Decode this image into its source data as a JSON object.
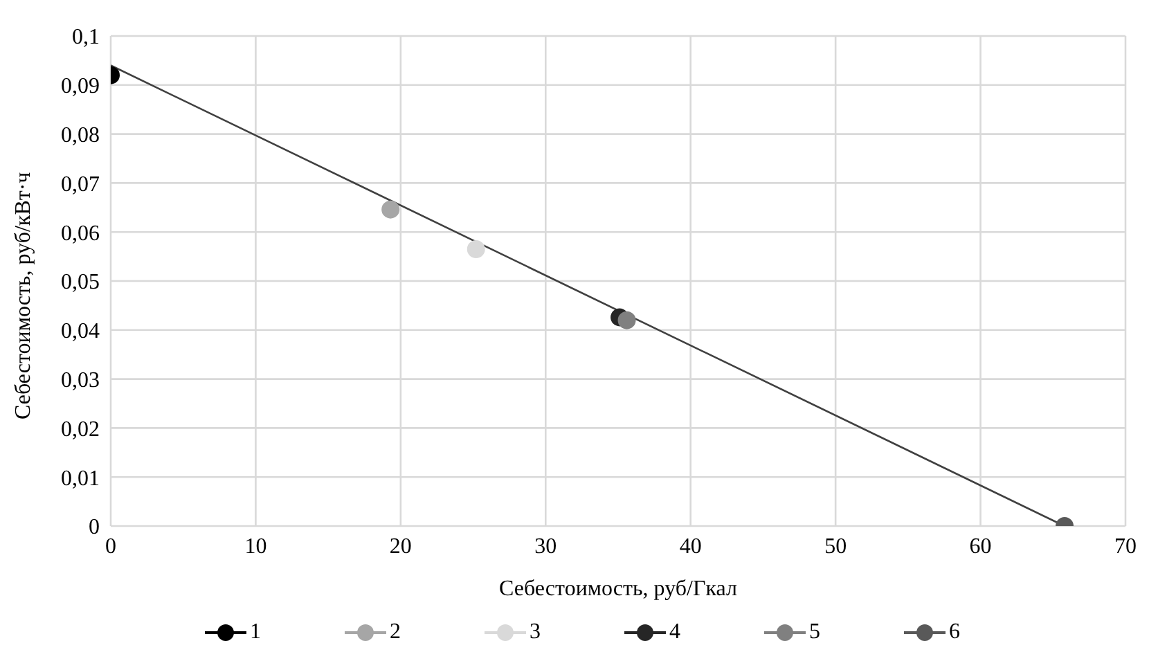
{
  "chart_data": {
    "type": "line",
    "xlabel": "Себестоимость, руб/Гкал",
    "ylabel": "Себестоимость, руб/кВт·ч",
    "xlim": [
      0,
      70
    ],
    "xticks": [
      0,
      10,
      20,
      30,
      40,
      50,
      60,
      70
    ],
    "ylim": [
      0,
      0.1
    ],
    "yticks": [
      {
        "value": 0,
        "label": "0"
      },
      {
        "value": 0.01,
        "label": "0,01"
      },
      {
        "value": 0.02,
        "label": "0,02"
      },
      {
        "value": 0.03,
        "label": "0,03"
      },
      {
        "value": 0.04,
        "label": "0,04"
      },
      {
        "value": 0.05,
        "label": "0,05"
      },
      {
        "value": 0.06,
        "label": "0,06"
      },
      {
        "value": 0.07,
        "label": "0,07"
      },
      {
        "value": 0.08,
        "label": "0,08"
      },
      {
        "value": 0.09,
        "label": "0,09"
      },
      {
        "value": 0.1,
        "label": "0,1"
      }
    ],
    "grid": true,
    "legend": "bottom",
    "marker": "circle",
    "series": [
      {
        "name": "1",
        "color": "#000000",
        "x": [
          0
        ],
        "values": [
          0.092
        ]
      },
      {
        "name": "2",
        "color": "#a6a6a6",
        "x": [
          19.3
        ],
        "values": [
          0.0646
        ]
      },
      {
        "name": "3",
        "color": "#d9d9d9",
        "x": [
          25.2
        ],
        "values": [
          0.0565
        ]
      },
      {
        "name": "4",
        "color": "#262626",
        "x": [
          35.1
        ],
        "values": [
          0.0426
        ]
      },
      {
        "name": "5",
        "color": "#808080",
        "x": [
          35.6
        ],
        "values": [
          0.042
        ]
      },
      {
        "name": "6",
        "color": "#595959",
        "x": [
          65.8
        ],
        "values": [
          0
        ]
      },
      {
        "color": "#404040",
        "x": [
          0,
          65.8
        ],
        "values": [
          0.094,
          0
        ],
        "marker": "none"
      }
    ]
  }
}
